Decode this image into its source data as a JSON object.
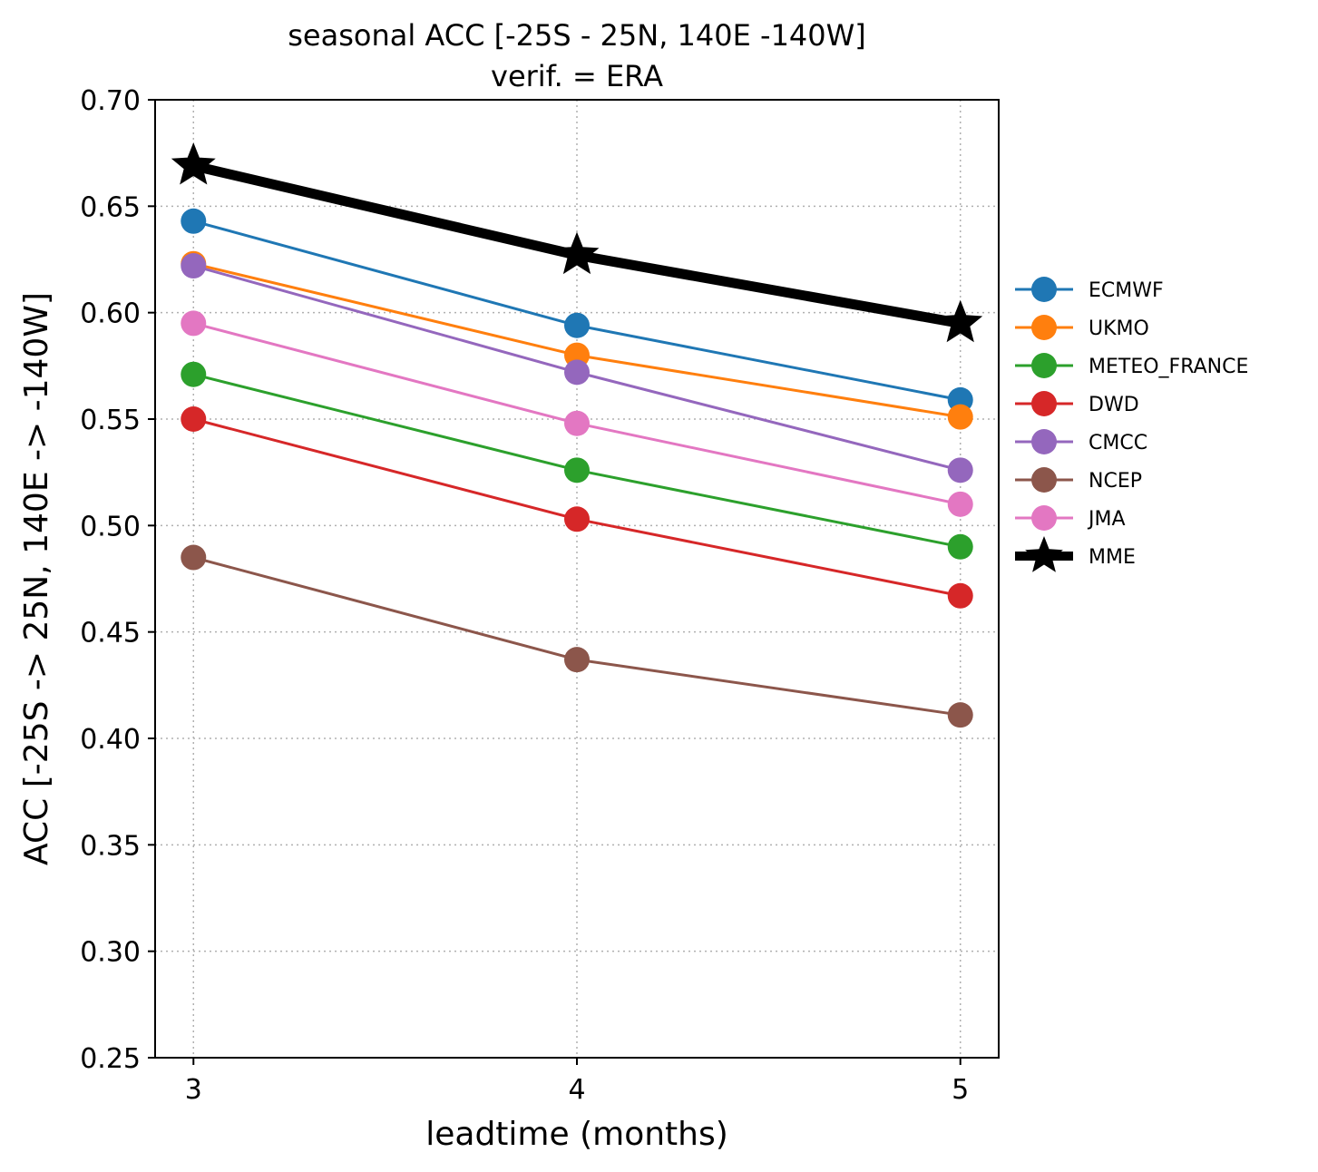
{
  "chart_data": {
    "type": "line",
    "title": "seasonal ACC [-25S - 25N, 140E -140W]",
    "subtitle": "verif. = ERA",
    "xlabel": "leadtime (months)",
    "ylabel": "ACC [-25S -> 25N, 140E -> -140W]",
    "x": [
      3,
      4,
      5
    ],
    "x_ticks": [
      "3",
      "4",
      "5"
    ],
    "xlim": [
      2.9,
      5.1
    ],
    "ylim": [
      0.25,
      0.7
    ],
    "y_ticks": [
      "0.25",
      "0.30",
      "0.35",
      "0.40",
      "0.45",
      "0.50",
      "0.55",
      "0.60",
      "0.65",
      "0.70"
    ],
    "grid": true,
    "legend_position": "right, outside plot",
    "series": [
      {
        "name": "ECMWF",
        "values": [
          0.643,
          0.594,
          0.559
        ],
        "color": "#1f77b4",
        "marker": "circle"
      },
      {
        "name": "UKMO",
        "values": [
          0.623,
          0.58,
          0.551
        ],
        "color": "#ff7f0e",
        "marker": "circle"
      },
      {
        "name": "METEO_FRANCE",
        "values": [
          0.571,
          0.526,
          0.49
        ],
        "color": "#2ca02c",
        "marker": "circle"
      },
      {
        "name": "DWD",
        "values": [
          0.55,
          0.503,
          0.467
        ],
        "color": "#d62728",
        "marker": "circle"
      },
      {
        "name": "CMCC",
        "values": [
          0.622,
          0.572,
          0.526
        ],
        "color": "#9467bd",
        "marker": "circle"
      },
      {
        "name": "NCEP",
        "values": [
          0.485,
          0.437,
          0.411
        ],
        "color": "#8c564b",
        "marker": "circle"
      },
      {
        "name": "JMA",
        "values": [
          0.595,
          0.548,
          0.51
        ],
        "color": "#e377c2",
        "marker": "circle"
      },
      {
        "name": "MME",
        "values": [
          0.669,
          0.627,
          0.595
        ],
        "color": "#000000",
        "marker": "star"
      }
    ]
  }
}
